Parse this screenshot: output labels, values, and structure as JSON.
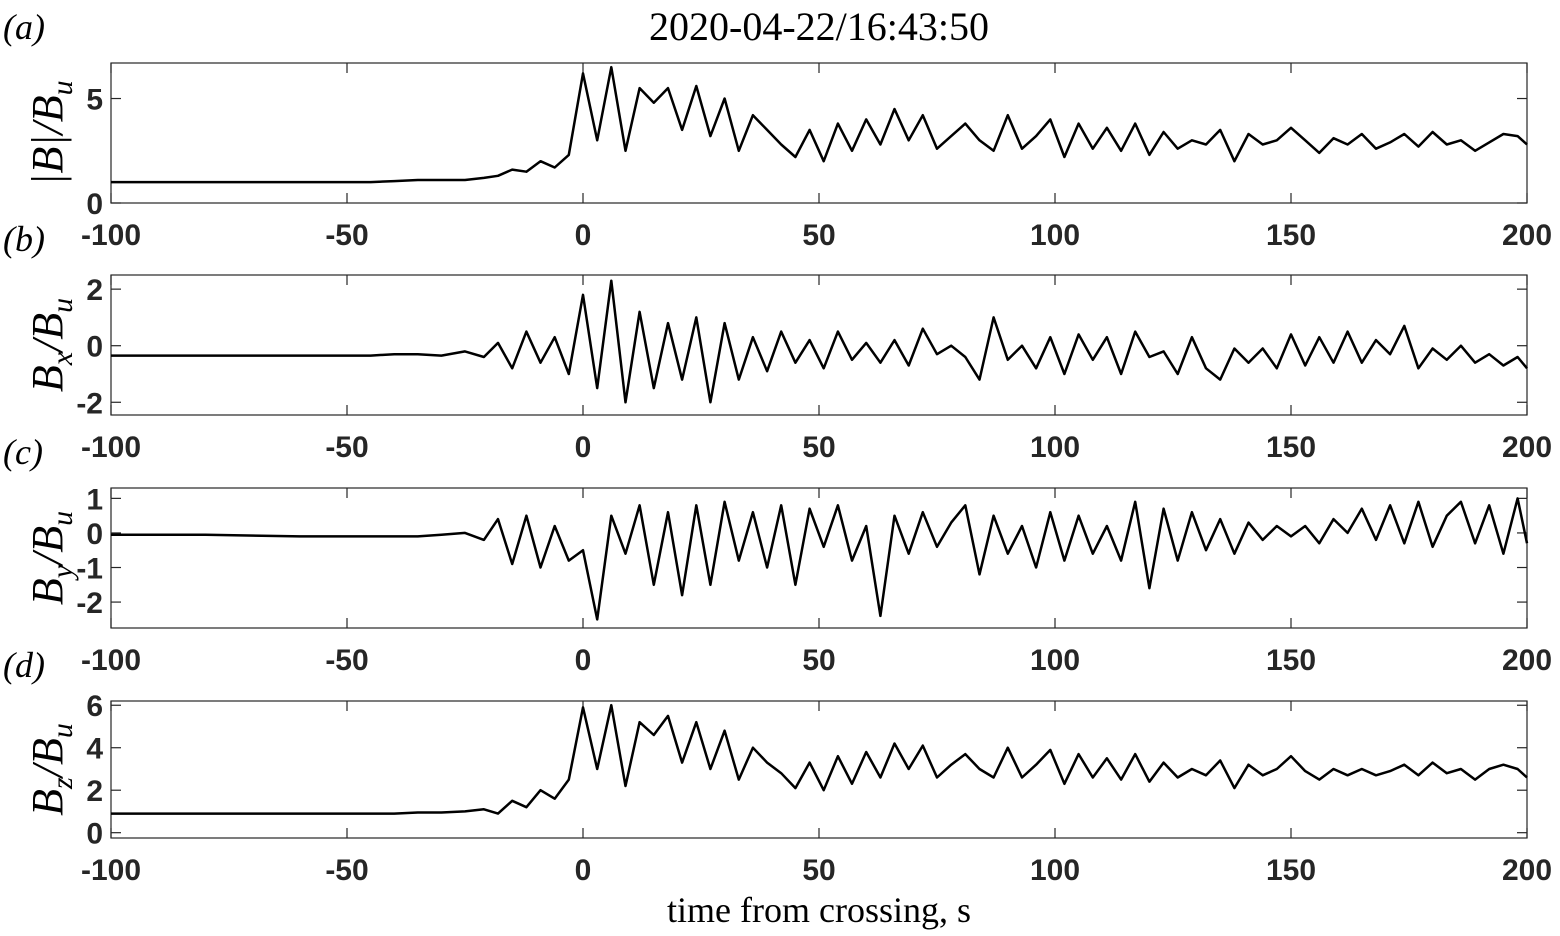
{
  "chart_data": [
    {
      "type": "line",
      "panel": "(a)",
      "title": "2020-04-22/16:43:50",
      "ylabel": [
        {
          "text": "|B|/B"
        },
        {
          "sub": "u"
        }
      ],
      "xlim": [
        -100,
        200
      ],
      "xticks": [
        -100,
        -50,
        0,
        50,
        100,
        150,
        200
      ],
      "ylim": [
        0,
        6.7
      ],
      "yticks": [
        0,
        5
      ],
      "x": [
        -100,
        -80,
        -60,
        -45,
        -40,
        -35,
        -30,
        -25,
        -21,
        -18,
        -15,
        -12,
        -9,
        -6,
        -3,
        0,
        3,
        6,
        9,
        12,
        15,
        18,
        21,
        24,
        27,
        30,
        33,
        36,
        39,
        42,
        45,
        48,
        51,
        54,
        57,
        60,
        63,
        66,
        69,
        72,
        75,
        78,
        81,
        84,
        87,
        90,
        93,
        96,
        99,
        102,
        105,
        108,
        111,
        114,
        117,
        120,
        123,
        126,
        129,
        132,
        135,
        138,
        141,
        144,
        147,
        150,
        153,
        156,
        159,
        162,
        165,
        168,
        171,
        174,
        177,
        180,
        183,
        186,
        189,
        192,
        195,
        198,
        200
      ],
      "series": [
        {
          "color": "#000000",
          "values": [
            1,
            1,
            1,
            1,
            1.05,
            1.1,
            1.1,
            1.1,
            1.2,
            1.3,
            1.6,
            1.5,
            2,
            1.7,
            2.3,
            6.2,
            3,
            6.5,
            2.5,
            5.5,
            4.8,
            5.5,
            3.5,
            5.6,
            3.2,
            5,
            2.5,
            4.2,
            3.5,
            2.8,
            2.2,
            3.5,
            2,
            3.8,
            2.5,
            4,
            2.8,
            4.5,
            3,
            4.2,
            2.6,
            3.2,
            3.8,
            3,
            2.5,
            4.2,
            2.6,
            3.2,
            4,
            2.2,
            3.8,
            2.6,
            3.6,
            2.5,
            3.8,
            2.3,
            3.4,
            2.6,
            3,
            2.8,
            3.5,
            2,
            3.3,
            2.8,
            3,
            3.6,
            3,
            2.4,
            3.1,
            2.8,
            3.3,
            2.6,
            2.9,
            3.3,
            2.7,
            3.4,
            2.8,
            3,
            2.5,
            2.9,
            3.3,
            3.2,
            2.8
          ]
        }
      ]
    },
    {
      "type": "line",
      "panel": "(b)",
      "ylabel": [
        {
          "text": "B"
        },
        {
          "sub": "x"
        },
        {
          "text": "/B"
        },
        {
          "sub": "u"
        }
      ],
      "xlim": [
        -100,
        200
      ],
      "xticks": [
        -100,
        -50,
        0,
        50,
        100,
        150,
        200
      ],
      "ylim": [
        -2.45,
        2.5
      ],
      "yticks": [
        -2,
        0,
        2
      ],
      "x": [
        -100,
        -80,
        -60,
        -45,
        -40,
        -35,
        -30,
        -25,
        -21,
        -18,
        -15,
        -12,
        -9,
        -6,
        -3,
        0,
        3,
        6,
        9,
        12,
        15,
        18,
        21,
        24,
        27,
        30,
        33,
        36,
        39,
        42,
        45,
        48,
        51,
        54,
        57,
        60,
        63,
        66,
        69,
        72,
        75,
        78,
        81,
        84,
        87,
        90,
        93,
        96,
        99,
        102,
        105,
        108,
        111,
        114,
        117,
        120,
        123,
        126,
        129,
        132,
        135,
        138,
        141,
        144,
        147,
        150,
        153,
        156,
        159,
        162,
        165,
        168,
        171,
        174,
        177,
        180,
        183,
        186,
        189,
        192,
        195,
        198,
        200
      ],
      "series": [
        {
          "color": "#000000",
          "values": [
            -0.35,
            -0.35,
            -0.35,
            -0.35,
            -0.3,
            -0.3,
            -0.35,
            -0.2,
            -0.4,
            0.1,
            -0.8,
            0.5,
            -0.6,
            0.3,
            -1,
            1.8,
            -1.5,
            2.3,
            -2,
            1.2,
            -1.5,
            0.8,
            -1.2,
            1,
            -2,
            0.8,
            -1.2,
            0.3,
            -0.9,
            0.5,
            -0.6,
            0.2,
            -0.8,
            0.5,
            -0.5,
            0.1,
            -0.6,
            0.2,
            -0.7,
            0.6,
            -0.3,
            0,
            -0.4,
            -1.2,
            1,
            -0.5,
            0,
            -0.8,
            0.3,
            -1,
            0.4,
            -0.5,
            0.3,
            -1,
            0.5,
            -0.4,
            -0.2,
            -1,
            0.3,
            -0.8,
            -1.2,
            -0.1,
            -0.6,
            -0.1,
            -0.8,
            0.4,
            -0.7,
            0.3,
            -0.6,
            0.5,
            -0.6,
            0.2,
            -0.3,
            0.7,
            -0.8,
            -0.1,
            -0.5,
            0,
            -0.6,
            -0.3,
            -0.7,
            -0.4,
            -0.8
          ]
        }
      ]
    },
    {
      "type": "line",
      "panel": "(c)",
      "ylabel": [
        {
          "text": "B"
        },
        {
          "sub": "y"
        },
        {
          "text": "/B"
        },
        {
          "sub": "u"
        }
      ],
      "xlim": [
        -100,
        200
      ],
      "xticks": [
        -100,
        -50,
        0,
        50,
        100,
        150,
        200
      ],
      "ylim": [
        -2.75,
        1.3
      ],
      "yticks": [
        -2,
        -1,
        0,
        1
      ],
      "x": [
        -100,
        -80,
        -60,
        -45,
        -40,
        -35,
        -30,
        -25,
        -21,
        -18,
        -15,
        -12,
        -9,
        -6,
        -3,
        0,
        3,
        6,
        9,
        12,
        15,
        18,
        21,
        24,
        27,
        30,
        33,
        36,
        39,
        42,
        45,
        48,
        51,
        54,
        57,
        60,
        63,
        66,
        69,
        72,
        75,
        78,
        81,
        84,
        87,
        90,
        93,
        96,
        99,
        102,
        105,
        108,
        111,
        114,
        117,
        120,
        123,
        126,
        129,
        132,
        135,
        138,
        141,
        144,
        147,
        150,
        153,
        156,
        159,
        162,
        165,
        168,
        171,
        174,
        177,
        180,
        183,
        186,
        189,
        192,
        195,
        198,
        200
      ],
      "series": [
        {
          "color": "#000000",
          "values": [
            -0.05,
            -0.05,
            -0.1,
            -0.1,
            -0.1,
            -0.1,
            -0.05,
            0,
            -0.2,
            0.4,
            -0.9,
            0.5,
            -1,
            0.2,
            -0.8,
            -0.5,
            -2.5,
            0.5,
            -0.6,
            0.8,
            -1.5,
            0.6,
            -1.8,
            0.8,
            -1.5,
            0.9,
            -0.8,
            0.6,
            -1,
            0.8,
            -1.5,
            0.7,
            -0.4,
            0.8,
            -0.8,
            0.2,
            -2.4,
            0.5,
            -0.6,
            0.6,
            -0.4,
            0.3,
            0.8,
            -1.2,
            0.5,
            -0.6,
            0.2,
            -1,
            0.6,
            -0.8,
            0.5,
            -0.6,
            0.2,
            -0.8,
            0.9,
            -1.6,
            0.7,
            -0.8,
            0.6,
            -0.5,
            0.4,
            -0.6,
            0.3,
            -0.2,
            0.2,
            -0.1,
            0.2,
            -0.3,
            0.4,
            0,
            0.7,
            -0.2,
            0.8,
            -0.3,
            0.9,
            -0.4,
            0.5,
            0.9,
            -0.3,
            0.8,
            -0.6,
            1,
            -0.3
          ]
        }
      ]
    },
    {
      "type": "line",
      "panel": "(d)",
      "xlabel": "time from crossing, s",
      "ylabel": [
        {
          "text": "B"
        },
        {
          "sub": "z"
        },
        {
          "text": "/B"
        },
        {
          "sub": "u"
        }
      ],
      "xlim": [
        -100,
        200
      ],
      "xticks": [
        -100,
        -50,
        0,
        50,
        100,
        150,
        200
      ],
      "ylim": [
        -0.25,
        6.2
      ],
      "yticks": [
        0,
        2,
        4,
        6
      ],
      "x": [
        -100,
        -80,
        -60,
        -45,
        -40,
        -35,
        -30,
        -25,
        -21,
        -18,
        -15,
        -12,
        -9,
        -6,
        -3,
        0,
        3,
        6,
        9,
        12,
        15,
        18,
        21,
        24,
        27,
        30,
        33,
        36,
        39,
        42,
        45,
        48,
        51,
        54,
        57,
        60,
        63,
        66,
        69,
        72,
        75,
        78,
        81,
        84,
        87,
        90,
        93,
        96,
        99,
        102,
        105,
        108,
        111,
        114,
        117,
        120,
        123,
        126,
        129,
        132,
        135,
        138,
        141,
        144,
        147,
        150,
        153,
        156,
        159,
        162,
        165,
        168,
        171,
        174,
        177,
        180,
        183,
        186,
        189,
        192,
        195,
        198,
        200
      ],
      "series": [
        {
          "color": "#000000",
          "values": [
            0.9,
            0.9,
            0.9,
            0.9,
            0.9,
            0.95,
            0.95,
            1,
            1.1,
            0.9,
            1.5,
            1.2,
            2,
            1.6,
            2.5,
            5.9,
            3,
            6,
            2.2,
            5.2,
            4.6,
            5.5,
            3.3,
            5.2,
            3,
            4.8,
            2.5,
            4,
            3.3,
            2.8,
            2.1,
            3.3,
            2,
            3.6,
            2.3,
            3.8,
            2.6,
            4.2,
            3,
            4.1,
            2.6,
            3.2,
            3.7,
            3,
            2.6,
            4,
            2.6,
            3.2,
            3.9,
            2.3,
            3.7,
            2.6,
            3.5,
            2.5,
            3.7,
            2.4,
            3.3,
            2.6,
            3,
            2.7,
            3.4,
            2.1,
            3.2,
            2.7,
            3,
            3.6,
            2.9,
            2.5,
            3,
            2.7,
            3,
            2.7,
            2.9,
            3.2,
            2.7,
            3.3,
            2.8,
            3,
            2.5,
            3,
            3.2,
            3,
            2.6
          ]
        }
      ]
    }
  ]
}
